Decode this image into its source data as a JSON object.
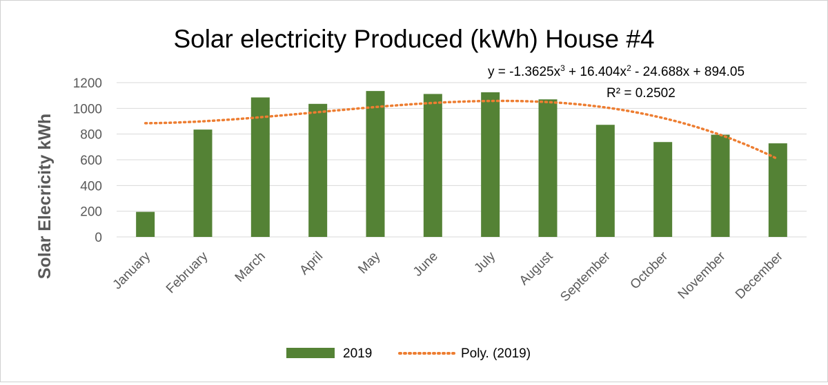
{
  "chart_data": {
    "type": "bar",
    "title": "Solar electricity Produced (kWh)  House #4",
    "xlabel": "",
    "ylabel": "Solar Elecricity  kWh",
    "ylim": [
      0,
      1200
    ],
    "yticks": [
      0,
      200,
      400,
      600,
      800,
      1000,
      1200
    ],
    "categories": [
      "January",
      "February",
      "March",
      "April",
      "May",
      "June",
      "July",
      "August",
      "September",
      "October",
      "November",
      "December"
    ],
    "series": [
      {
        "name": "2019",
        "values": [
          195,
          835,
          1085,
          1035,
          1135,
          1112,
          1125,
          1070,
          872,
          738,
          795,
          728
        ],
        "color": "#548235"
      }
    ],
    "trendline": {
      "name": "Poly. (2019)",
      "type": "polynomial",
      "order": 3,
      "coefficients": [
        -1.3625,
        16.404,
        -24.688,
        894.05
      ],
      "equation_prefix": "y = -1.3625x",
      "equation_term2": " + 16.404x",
      "equation_suffix": " - 24.688x + 894.05",
      "power3": "3",
      "power2": "2",
      "r_squared_label": "R² = 0.2502",
      "color": "#ed7d31"
    },
    "grid": true,
    "legend_position": "bottom"
  }
}
